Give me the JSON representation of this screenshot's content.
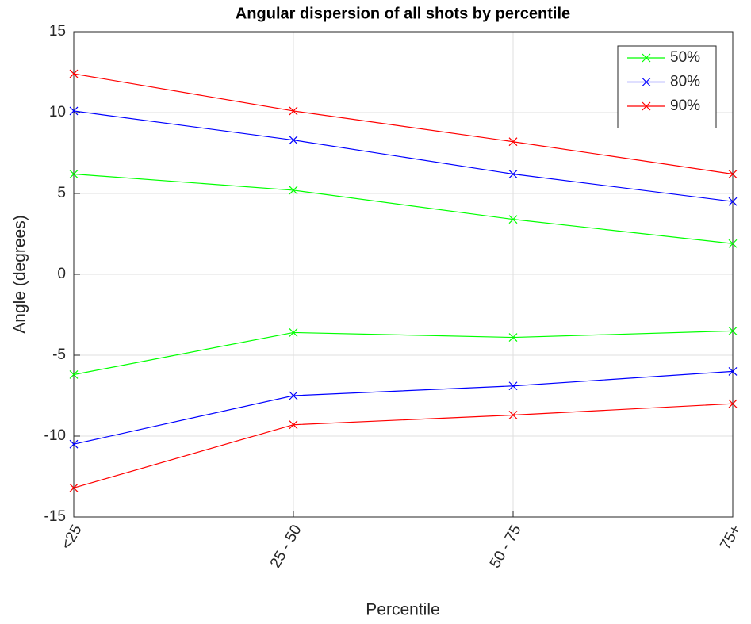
{
  "chart_data": {
    "type": "line",
    "title": "Angular dispersion of all shots by percentile",
    "x_label": "Percentile",
    "y_label": "Angle (degrees)",
    "categories": [
      "<25",
      "25 - 50",
      "50 - 75",
      "75+"
    ],
    "series": [
      {
        "name": "50%",
        "color": "#00ff00",
        "values": [
          6.2,
          5.2,
          3.4,
          1.9
        ],
        "lower": [
          -6.2,
          -3.6,
          -3.9,
          -3.5
        ]
      },
      {
        "name": "80%",
        "color": "#0000ff",
        "values": [
          10.1,
          8.3,
          6.2,
          4.5
        ],
        "lower": [
          -10.5,
          -7.5,
          -6.9,
          -6.0
        ]
      },
      {
        "name": "90%",
        "color": "#ff0000",
        "values": [
          12.4,
          10.1,
          8.2,
          6.2
        ],
        "lower": [
          -13.2,
          -9.3,
          -8.7,
          -8.0
        ]
      }
    ],
    "ylim": [
      -15,
      15
    ],
    "yticks": [
      -15,
      -10,
      -5,
      0,
      5,
      10,
      15
    ],
    "grid": true,
    "legend": "upper right"
  }
}
